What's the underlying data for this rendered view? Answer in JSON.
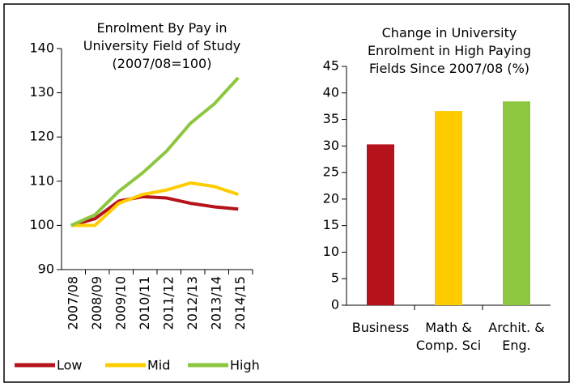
{
  "chart_data": [
    {
      "type": "line",
      "title": "Enrolment By Pay in University Field of Study (2007/08=100)",
      "categories": [
        "2007/08",
        "2008/09",
        "2009/10",
        "2010/11",
        "2011/12",
        "2012/13",
        "2013/14",
        "2014/15"
      ],
      "series": [
        {
          "name": "Low",
          "color": "#b5121b",
          "values": [
            100,
            101.5,
            105.5,
            106.5,
            106.2,
            105,
            104.2,
            103.7
          ]
        },
        {
          "name": "Mid",
          "color": "#ffcc00",
          "values": [
            100,
            100,
            105,
            107,
            108,
            109.6,
            108.8,
            107
          ]
        },
        {
          "name": "High",
          "color": "#8dc63f",
          "values": [
            100,
            102.4,
            107.7,
            111.9,
            116.8,
            123.1,
            127.5,
            133.4
          ]
        }
      ],
      "ylim": [
        90,
        140
      ],
      "yticks": [
        90,
        100,
        110,
        120,
        130,
        140
      ],
      "grid": false,
      "legend": "bottom"
    },
    {
      "type": "bar",
      "title": "Change in University Enrolment in High Paying Fields Since 2007/08 (%)",
      "categories": [
        "Business",
        "Math & Comp. Sci",
        "Archit. & Eng."
      ],
      "values": [
        30.3,
        36.6,
        38.4
      ],
      "colors": [
        "#b5121b",
        "#ffcc00",
        "#8dc63f"
      ],
      "ylim": [
        0,
        45
      ],
      "yticks": [
        0,
        5,
        10,
        15,
        20,
        25,
        30,
        35,
        40,
        45
      ],
      "grid": false
    }
  ]
}
